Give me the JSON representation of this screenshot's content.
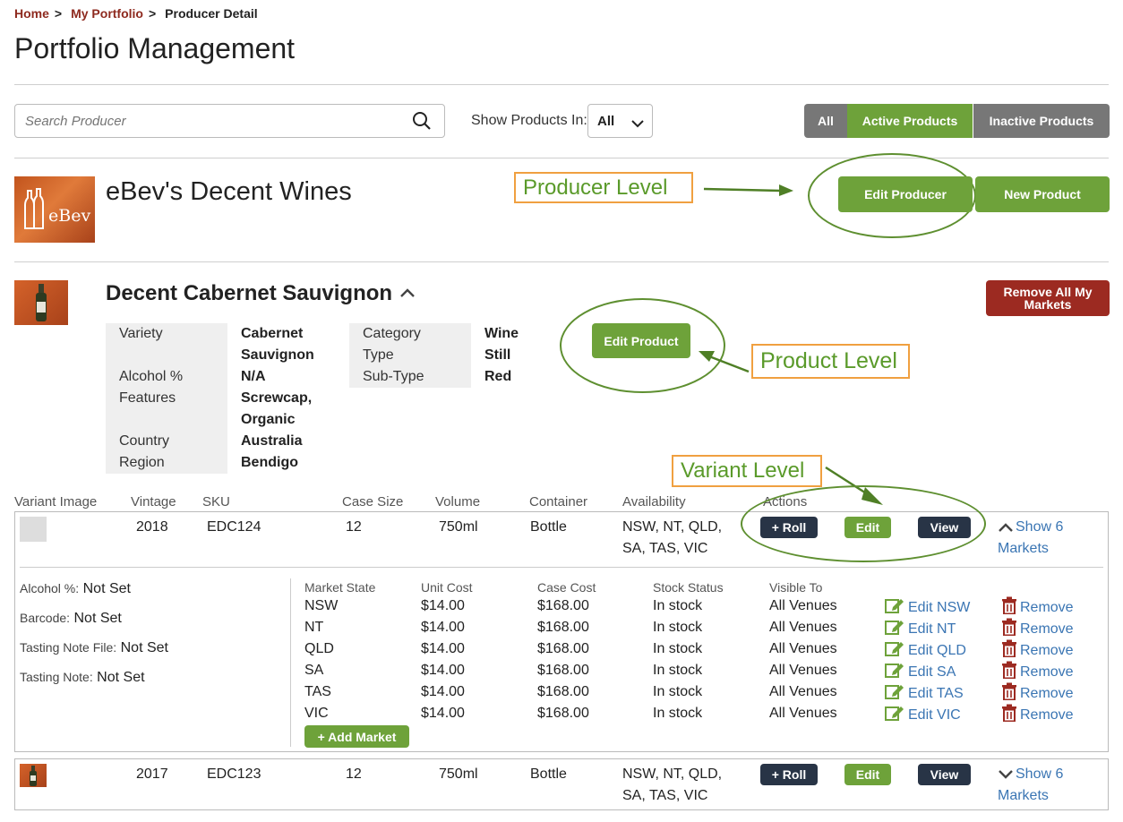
{
  "breadcrumb": {
    "home": "Home",
    "sep1": ">",
    "portfolio": "My Portfolio",
    "sep2": ">",
    "current": "Producer Detail"
  },
  "page_title": "Portfolio Management",
  "search": {
    "placeholder": "Search Producer"
  },
  "show_products": {
    "label": "Show Products In:",
    "selected": "All"
  },
  "filters": {
    "all": "All",
    "active": "Active Products",
    "inactive": "Inactive Products"
  },
  "producer": {
    "logo_text": "eBev",
    "name": "eBev's Decent Wines",
    "edit_label": "Edit Producer",
    "new_label": "New Product"
  },
  "annotations": {
    "producer_level": "Producer Level",
    "product_level": "Product Level",
    "variant_level": "Variant Level",
    "color_orange": "#f0a040",
    "color_green": "#5e8f30"
  },
  "product": {
    "name": "Decent Cabernet Sauvignon",
    "remove_all_label": "Remove All My Markets",
    "edit_label": "Edit Product",
    "attrs": {
      "variety_label": "Variety",
      "variety_value_1": "Cabernet",
      "variety_value_2": "Sauvignon",
      "alcohol_label": "Alcohol %",
      "alcohol_value": "N/A",
      "features_label": "Features",
      "features_value_1": "Screwcap,",
      "features_value_2": "Organic",
      "country_label": "Country",
      "country_value": "Australia",
      "region_label": "Region",
      "region_value": "Bendigo",
      "category_label": "Category",
      "category_value": "Wine",
      "type_label": "Type",
      "type_value": "Still",
      "subtype_label": "Sub-Type",
      "subtype_value": "Red"
    }
  },
  "variant_headers": {
    "image": "Variant Image",
    "vintage": "Vintage",
    "sku": "SKU",
    "case_size": "Case Size",
    "volume": "Volume",
    "container": "Container",
    "availability": "Availability",
    "actions": "Actions"
  },
  "variants": [
    {
      "vintage": "2018",
      "sku": "EDC124",
      "case_size": "12",
      "volume": "750ml",
      "container": "Bottle",
      "availability_1": "NSW, NT, QLD,",
      "availability_2": "SA, TAS, VIC",
      "roll": "+ Roll",
      "edit": "Edit",
      "view": "View",
      "show_1": "Show 6",
      "show_2": "Markets"
    },
    {
      "vintage": "2017",
      "sku": "EDC123",
      "case_size": "12",
      "volume": "750ml",
      "container": "Bottle",
      "availability_1": "NSW, NT, QLD,",
      "availability_2": "SA, TAS, VIC",
      "roll": "+ Roll",
      "edit": "Edit",
      "view": "View",
      "show_1": "Show 6",
      "show_2": "Markets"
    }
  ],
  "variant_details": {
    "alcohol_label": "Alcohol %:",
    "alcohol_value": "Not Set",
    "barcode_label": "Barcode:",
    "barcode_value": "Not Set",
    "tasting_file_label": "Tasting Note File:",
    "tasting_file_value": "Not Set",
    "tasting_note_label": "Tasting Note:",
    "tasting_note_value": "Not Set"
  },
  "market_headers": {
    "state": "Market State",
    "unit_cost": "Unit Cost",
    "case_cost": "Case Cost",
    "stock": "Stock Status",
    "visible": "Visible To"
  },
  "markets": [
    {
      "state": "NSW",
      "unit": "$14.00",
      "case": "$168.00",
      "stock": "In stock",
      "visible": "All Venues",
      "edit": "Edit NSW",
      "remove": "Remove"
    },
    {
      "state": "NT",
      "unit": "$14.00",
      "case": "$168.00",
      "stock": "In stock",
      "visible": "All Venues",
      "edit": "Edit NT",
      "remove": "Remove"
    },
    {
      "state": "QLD",
      "unit": "$14.00",
      "case": "$168.00",
      "stock": "In stock",
      "visible": "All Venues",
      "edit": "Edit QLD",
      "remove": "Remove"
    },
    {
      "state": "SA",
      "unit": "$14.00",
      "case": "$168.00",
      "stock": "In stock",
      "visible": "All Venues",
      "edit": "Edit SA",
      "remove": "Remove"
    },
    {
      "state": "TAS",
      "unit": "$14.00",
      "case": "$168.00",
      "stock": "In stock",
      "visible": "All Venues",
      "edit": "Edit TAS",
      "remove": "Remove"
    },
    {
      "state": "VIC",
      "unit": "$14.00",
      "case": "$168.00",
      "stock": "In stock",
      "visible": "All Venues",
      "edit": "Edit VIC",
      "remove": "Remove"
    }
  ],
  "add_market_label": "+ Add Market"
}
